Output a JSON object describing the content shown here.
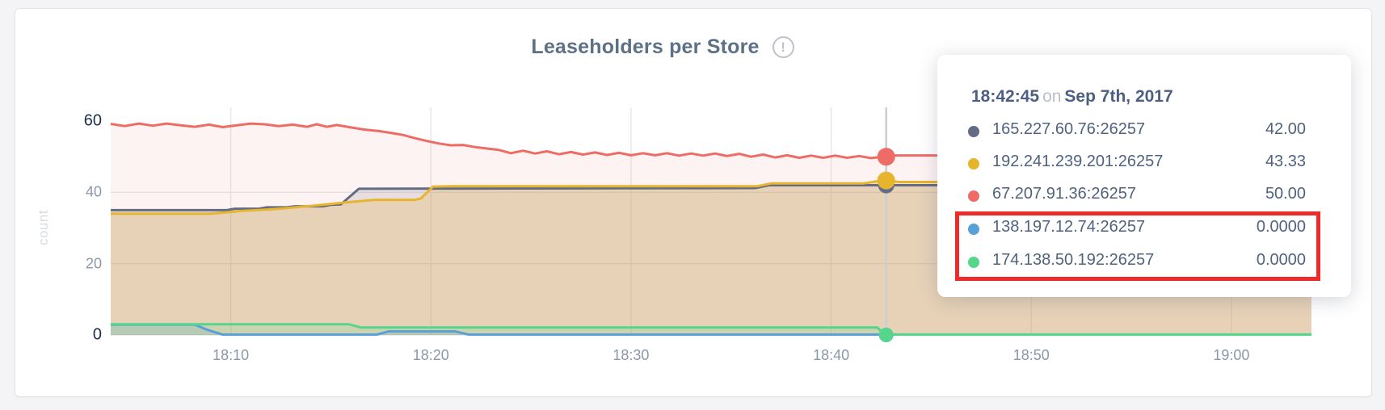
{
  "card": {
    "title": "Leaseholders per Store",
    "info_glyph": "!"
  },
  "y_axis": {
    "label": "count",
    "ticks": [
      "60",
      "40",
      "20",
      "0"
    ]
  },
  "x_axis": {
    "ticks": [
      "18:10",
      "18:20",
      "18:30",
      "18:40",
      "18:50",
      "19:00"
    ]
  },
  "tooltip": {
    "time": "18:42:45",
    "joiner": "on",
    "date": "Sep 7th, 2017",
    "highlight_color": "#ee2b2b",
    "rows": [
      {
        "label": "165.227.60.76:26257",
        "value": "42.00",
        "color": "#636c84",
        "highlighted": false
      },
      {
        "label": "192.241.239.201:26257",
        "value": "43.33",
        "color": "#e7b42e",
        "highlighted": false
      },
      {
        "label": "67.207.91.36:26257",
        "value": "50.00",
        "color": "#ee6c66",
        "highlighted": false
      },
      {
        "label": "138.197.12.74:26257",
        "value": "0.0000",
        "color": "#57a0d8",
        "highlighted": true
      },
      {
        "label": "174.138.50.192:26257",
        "value": "0.0000",
        "color": "#55d68c",
        "highlighted": true
      }
    ]
  },
  "chart_data": {
    "type": "area",
    "title": "Leaseholders per Store",
    "xlabel": "",
    "ylabel": "count",
    "ylim": [
      0,
      60
    ],
    "y_tick_values": [
      60,
      40,
      20,
      0
    ],
    "x_range_minutes": [
      4,
      64
    ],
    "x_ticks": [
      {
        "minute": 10,
        "label": "18:10"
      },
      {
        "minute": 20,
        "label": "18:20"
      },
      {
        "minute": 30,
        "label": "18:30"
      },
      {
        "minute": 40,
        "label": "18:40"
      },
      {
        "minute": 50,
        "label": "18:50"
      },
      {
        "minute": 60,
        "label": "19:00"
      }
    ],
    "grid": true,
    "legend_position": "tooltip",
    "hover": {
      "minute": 42.75,
      "time": "18:42:45",
      "date": "Sep 7th, 2017"
    },
    "series": [
      {
        "name": "165.227.60.76:26257",
        "color": "#636c84",
        "fill_opacity": 0.15,
        "hover_value": 42.0,
        "dot_radius": 10,
        "points": [
          [
            4,
            35.0
          ],
          [
            9.8,
            35.0
          ],
          [
            10.2,
            35.4
          ],
          [
            11.4,
            35.4
          ],
          [
            11.8,
            35.8
          ],
          [
            12.8,
            35.8
          ],
          [
            13.2,
            36.1
          ],
          [
            14.6,
            36.1
          ],
          [
            15.0,
            36.5
          ],
          [
            15.5,
            36.6
          ],
          [
            16.4,
            41.0
          ],
          [
            25,
            41.1
          ],
          [
            36.2,
            41.2
          ],
          [
            36.9,
            42.0
          ],
          [
            42.75,
            42.0
          ],
          [
            64,
            42.0
          ]
        ]
      },
      {
        "name": "192.241.239.201:26257",
        "color": "#e7b42e",
        "fill_opacity": 0.24,
        "hover_value": 43.33,
        "dot_radius": 11,
        "points": [
          [
            4,
            34.0
          ],
          [
            9,
            34.0
          ],
          [
            9.6,
            34.3
          ],
          [
            10.6,
            34.8
          ],
          [
            11.6,
            35.1
          ],
          [
            12.6,
            35.5
          ],
          [
            13.6,
            36.0
          ],
          [
            14.6,
            36.5
          ],
          [
            15.6,
            37.1
          ],
          [
            16.6,
            37.6
          ],
          [
            17.2,
            37.9
          ],
          [
            19.2,
            37.9
          ],
          [
            19.5,
            38.3
          ],
          [
            20.1,
            41.6
          ],
          [
            21,
            41.7
          ],
          [
            36.3,
            41.7
          ],
          [
            37.0,
            42.5
          ],
          [
            41.6,
            42.5
          ],
          [
            42.3,
            43.1
          ],
          [
            42.75,
            43.33
          ],
          [
            43.4,
            42.9
          ],
          [
            64,
            42.9
          ]
        ]
      },
      {
        "name": "67.207.91.36:26257",
        "color": "#ee6c66",
        "fill_opacity": 0.08,
        "hover_value": 50.0,
        "dot_radius": 11,
        "points": [
          [
            4,
            59.2
          ],
          [
            4.7,
            58.6
          ],
          [
            5.4,
            59.3
          ],
          [
            6.1,
            58.7
          ],
          [
            6.8,
            59.3
          ],
          [
            7.5,
            58.8
          ],
          [
            8.2,
            58.4
          ],
          [
            8.9,
            59.0
          ],
          [
            9.6,
            58.3
          ],
          [
            10.3,
            58.8
          ],
          [
            11,
            59.3
          ],
          [
            11.7,
            59.1
          ],
          [
            12.4,
            58.6
          ],
          [
            13.1,
            59.0
          ],
          [
            13.8,
            58.4
          ],
          [
            14.3,
            59.1
          ],
          [
            14.8,
            58.4
          ],
          [
            15.3,
            58.9
          ],
          [
            16,
            58.2
          ],
          [
            16.7,
            57.6
          ],
          [
            17.4,
            57.2
          ],
          [
            18,
            56.7
          ],
          [
            18.6,
            56.1
          ],
          [
            19.2,
            55.2
          ],
          [
            19.8,
            54.4
          ],
          [
            20.4,
            53.7
          ],
          [
            21,
            53.2
          ],
          [
            21.6,
            53.3
          ],
          [
            22.2,
            52.7
          ],
          [
            22.8,
            52.3
          ],
          [
            23.4,
            51.9
          ],
          [
            24,
            51.0
          ],
          [
            24.6,
            51.7
          ],
          [
            25.2,
            50.9
          ],
          [
            25.8,
            51.5
          ],
          [
            26.4,
            50.7
          ],
          [
            27,
            51.3
          ],
          [
            27.6,
            50.6
          ],
          [
            28.2,
            51.2
          ],
          [
            28.8,
            50.5
          ],
          [
            29.4,
            51.1
          ],
          [
            30,
            50.4
          ],
          [
            30.6,
            51.0
          ],
          [
            31.2,
            50.4
          ],
          [
            31.8,
            51.0
          ],
          [
            32.4,
            50.3
          ],
          [
            33,
            50.9
          ],
          [
            33.6,
            50.3
          ],
          [
            34.2,
            50.9
          ],
          [
            34.8,
            50.2
          ],
          [
            35.4,
            50.8
          ],
          [
            36,
            50.0
          ],
          [
            36.6,
            50.6
          ],
          [
            37.2,
            49.8
          ],
          [
            37.8,
            50.4
          ],
          [
            38.4,
            49.7
          ],
          [
            39,
            50.3
          ],
          [
            39.6,
            49.7
          ],
          [
            40.2,
            50.3
          ],
          [
            40.8,
            49.7
          ],
          [
            41.4,
            50.2
          ],
          [
            42,
            49.6
          ],
          [
            42.4,
            49.9
          ],
          [
            42.75,
            50.0
          ],
          [
            43.2,
            50.35
          ],
          [
            64,
            50.35
          ]
        ]
      },
      {
        "name": "138.197.12.74:26257",
        "color": "#57a0d8",
        "fill_opacity": 0.18,
        "hover_value": 0.0,
        "dot_radius": 9,
        "points": [
          [
            4,
            2.9
          ],
          [
            8.2,
            2.9
          ],
          [
            8.8,
            1.5
          ],
          [
            9.6,
            0.08
          ],
          [
            17.3,
            0.08
          ],
          [
            17.9,
            1.0
          ],
          [
            21.2,
            1.0
          ],
          [
            21.9,
            0.08
          ],
          [
            64,
            0.08
          ]
        ]
      },
      {
        "name": "174.138.50.192:26257",
        "color": "#55d68c",
        "fill_opacity": 0.18,
        "hover_value": 0.0,
        "dot_radius": 9,
        "points": [
          [
            4,
            3.0
          ],
          [
            15.9,
            3.0
          ],
          [
            16.5,
            2.1
          ],
          [
            42.3,
            2.1
          ],
          [
            42.7,
            0.12
          ],
          [
            64,
            0.12
          ]
        ]
      }
    ]
  }
}
